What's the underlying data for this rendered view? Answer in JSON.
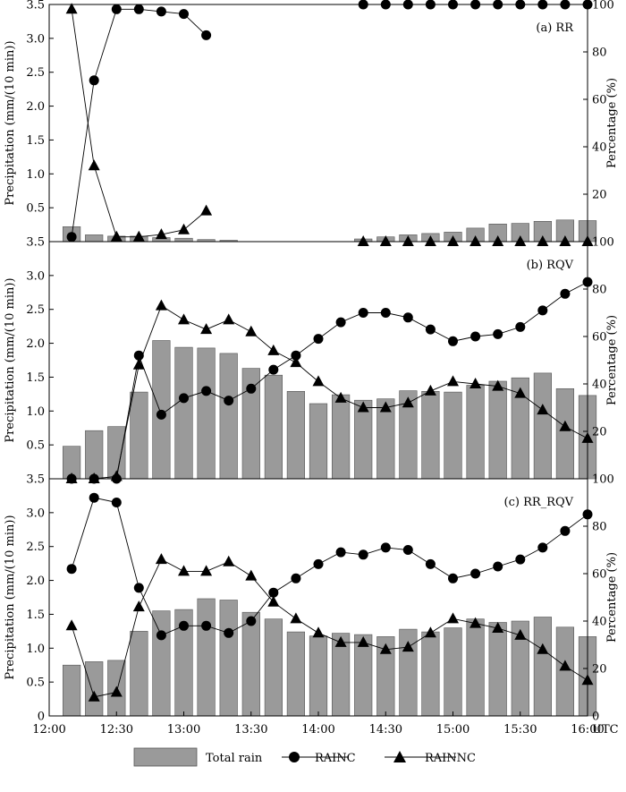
{
  "figure": {
    "x_tick_labels": [
      "12:00",
      "12:30",
      "13:00",
      "13:30",
      "14:00",
      "14:30",
      "15:00",
      "15:30",
      "16:00"
    ],
    "x_unit_label": "UTC",
    "left_axis_title": "Precipitation (mm/(10 min))",
    "right_axis_title": "Percentage (%)",
    "left_ticks": [
      "0",
      "0.5",
      "1.0",
      "1.5",
      "2.0",
      "2.5",
      "3.0",
      "3.5"
    ],
    "right_ticks": [
      "0",
      "20",
      "40",
      "60",
      "80",
      "100"
    ],
    "legend": {
      "total_rain": "Total rain",
      "rainc": "RAINC",
      "rainnc": "RAINNC"
    },
    "colors": {
      "bar": "#9a9a9a",
      "bar_edge": "#555555",
      "line": "#000000"
    }
  },
  "chart_data": [
    {
      "type": "bar",
      "title": "(a)  RR",
      "xlabel": "UTC",
      "ylabel": "Precipitation (mm/(10 min))",
      "y2label": "Percentage (%)",
      "ylim": [
        0,
        3.5
      ],
      "y2lim": [
        0,
        100
      ],
      "x_minutes": [
        10,
        20,
        30,
        40,
        50,
        60,
        70,
        80,
        90,
        100,
        110,
        120,
        130,
        140,
        150,
        160,
        170,
        180,
        190,
        200,
        210,
        220,
        230,
        240
      ],
      "series": [
        {
          "name": "Total rain",
          "kind": "bar",
          "axis": "left",
          "values": [
            0.22,
            0.1,
            0.08,
            0.08,
            0.06,
            0.05,
            0.03,
            0.02,
            0,
            0,
            0,
            0,
            0,
            0.04,
            0.07,
            0.1,
            0.12,
            0.14,
            0.2,
            0.26,
            0.27,
            0.3,
            0.32,
            0.31
          ]
        },
        {
          "name": "RAINC",
          "kind": "line",
          "marker": "circle",
          "axis": "right",
          "values": [
            2,
            68,
            98,
            98,
            97,
            96,
            87,
            null,
            null,
            null,
            null,
            null,
            null,
            100,
            100,
            100,
            100,
            100,
            100,
            100,
            100,
            100,
            100,
            100
          ]
        },
        {
          "name": "RAINNC",
          "kind": "line",
          "marker": "triangle",
          "axis": "right",
          "values": [
            98,
            32,
            2,
            2,
            3,
            5,
            13,
            null,
            null,
            null,
            null,
            null,
            null,
            0,
            0,
            0,
            0,
            0,
            0,
            0,
            0,
            0,
            0,
            0
          ]
        }
      ]
    },
    {
      "type": "bar",
      "title": "(b)  RQV",
      "xlabel": "UTC",
      "ylabel": "Precipitation (mm/(10 min))",
      "y2label": "Percentage (%)",
      "ylim": [
        0,
        3.5
      ],
      "y2lim": [
        0,
        100
      ],
      "x_minutes": [
        10,
        20,
        30,
        40,
        50,
        60,
        70,
        80,
        90,
        100,
        110,
        120,
        130,
        140,
        150,
        160,
        170,
        180,
        190,
        200,
        210,
        220,
        230,
        240
      ],
      "series": [
        {
          "name": "Total rain",
          "kind": "bar",
          "axis": "left",
          "values": [
            0.48,
            0.71,
            0.77,
            1.28,
            2.04,
            1.94,
            1.93,
            1.85,
            1.63,
            1.53,
            1.29,
            1.11,
            1.24,
            1.16,
            1.18,
            1.3,
            1.29,
            1.28,
            1.38,
            1.44,
            1.49,
            1.56,
            1.33,
            1.23
          ]
        },
        {
          "name": "RAINC",
          "kind": "line",
          "marker": "circle",
          "axis": "right",
          "values": [
            0,
            0,
            0,
            52,
            27,
            34,
            37,
            33,
            38,
            46,
            52,
            59,
            66,
            70,
            70,
            68,
            63,
            58,
            60,
            61,
            64,
            71,
            78,
            83
          ]
        },
        {
          "name": "RAINNC",
          "kind": "line",
          "marker": "triangle",
          "axis": "right",
          "values": [
            0,
            0,
            1,
            48,
            73,
            67,
            63,
            67,
            62,
            54,
            49,
            41,
            34,
            30,
            30,
            32,
            37,
            41,
            40,
            39,
            36,
            29,
            22,
            17
          ]
        }
      ]
    },
    {
      "type": "bar",
      "title": "(c)  RR_RQV",
      "xlabel": "UTC",
      "ylabel": "Precipitation (mm/(10 min))",
      "y2label": "Percentage (%)",
      "ylim": [
        0,
        3.5
      ],
      "y2lim": [
        0,
        100
      ],
      "x_minutes": [
        10,
        20,
        30,
        40,
        50,
        60,
        70,
        80,
        90,
        100,
        110,
        120,
        130,
        140,
        150,
        160,
        170,
        180,
        190,
        200,
        210,
        220,
        230,
        240
      ],
      "series": [
        {
          "name": "Total rain",
          "kind": "bar",
          "axis": "left",
          "values": [
            0.75,
            0.8,
            0.82,
            1.25,
            1.55,
            1.57,
            1.73,
            1.71,
            1.53,
            1.43,
            1.24,
            1.18,
            1.22,
            1.2,
            1.17,
            1.28,
            1.24,
            1.3,
            1.43,
            1.38,
            1.4,
            1.46,
            1.31,
            1.17
          ]
        },
        {
          "name": "RAINC",
          "kind": "line",
          "marker": "circle",
          "axis": "right",
          "values": [
            62,
            92,
            90,
            54,
            34,
            38,
            38,
            35,
            40,
            52,
            58,
            64,
            69,
            68,
            71,
            70,
            64,
            58,
            60,
            63,
            66,
            71,
            78,
            85
          ]
        },
        {
          "name": "RAINNC",
          "kind": "line",
          "marker": "triangle",
          "axis": "right",
          "values": [
            38,
            8,
            10,
            46,
            66,
            61,
            61,
            65,
            59,
            48,
            41,
            35,
            31,
            31,
            28,
            29,
            35,
            41,
            39,
            37,
            34,
            28,
            21,
            15
          ]
        }
      ]
    }
  ]
}
